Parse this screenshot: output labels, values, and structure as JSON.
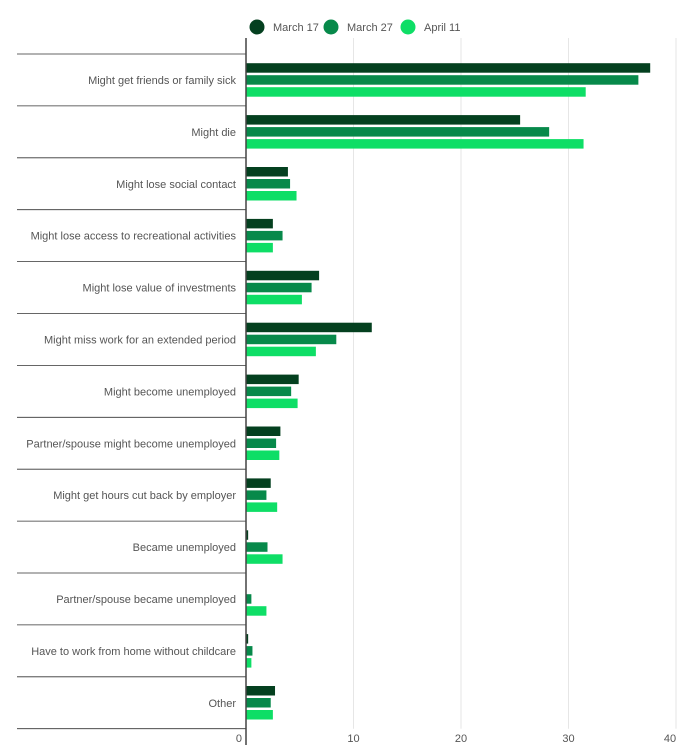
{
  "chart_data": {
    "type": "bar",
    "orientation": "horizontal",
    "title": "",
    "xlabel": "",
    "ylabel": "",
    "xlim": [
      0,
      40
    ],
    "xticks": [
      0,
      10,
      20,
      30,
      40
    ],
    "grid": true,
    "legend_position": "top",
    "categories": [
      "Might get friends or family sick",
      "Might die",
      "Might lose social contact",
      "Might lose access to recreational activities",
      "Might lose value of investments",
      "Might miss work for an extended period",
      "Might become unemployed",
      "Partner/spouse might become unemployed",
      "Might get hours cut back by employer",
      "Became unemployed",
      "Partner/spouse became unemployed",
      "Have to work from home without childcare",
      "Other"
    ],
    "series": [
      {
        "name": "March 17",
        "color": "#04401f",
        "values": [
          37.6,
          25.5,
          3.9,
          2.5,
          6.8,
          11.7,
          4.9,
          3.2,
          2.3,
          0.2,
          0.0,
          0.2,
          2.7
        ]
      },
      {
        "name": "March 27",
        "color": "#07894a",
        "values": [
          36.5,
          28.2,
          4.1,
          3.4,
          6.1,
          8.4,
          4.2,
          2.8,
          1.9,
          2.0,
          0.5,
          0.6,
          2.3
        ]
      },
      {
        "name": "April 11",
        "color": "#0ede66",
        "values": [
          31.6,
          31.4,
          4.7,
          2.5,
          5.2,
          6.5,
          4.8,
          3.1,
          2.9,
          3.4,
          1.9,
          0.5,
          2.5
        ]
      }
    ]
  }
}
